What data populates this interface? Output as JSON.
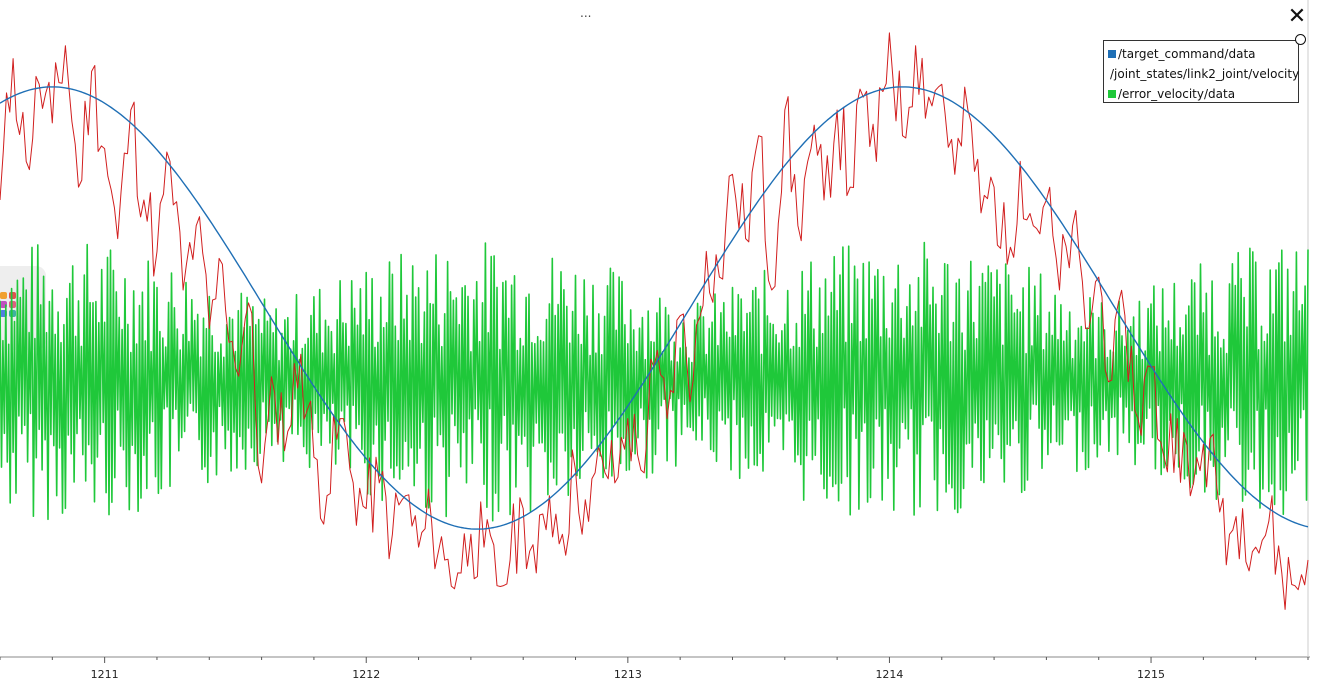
{
  "window": {
    "title_dots": "...",
    "close_symbol": "✕"
  },
  "legend": {
    "items": [
      {
        "label": "/target_command/data",
        "color": "#1f6fb5"
      },
      {
        "label": "/joint_states/link2_joint/velocity",
        "color": "#d11f1f"
      },
      {
        "label": "/error_velocity/data",
        "color": "#1fc83a"
      }
    ]
  },
  "chart_data": {
    "type": "line",
    "xlabel": "",
    "ylabel": "",
    "xlim": [
      1210.6,
      1215.6
    ],
    "ylim": [
      -1.2,
      1.25
    ],
    "x_ticks": [
      "1211",
      "1212",
      "1213",
      "1214",
      "1215"
    ],
    "x_tick_values": [
      1211,
      1212,
      1213,
      1214,
      1215
    ],
    "grid": false,
    "legend_position": "top-right",
    "series": [
      {
        "name": "/target_command/data",
        "color": "#1f6fb5",
        "x": [
          1210.6,
          1210.8,
          1211.0,
          1211.2,
          1211.4,
          1211.6,
          1211.8,
          1212.0,
          1212.2,
          1212.4,
          1212.6,
          1212.8,
          1213.0,
          1213.2,
          1213.4,
          1213.6,
          1213.8,
          1214.0,
          1214.2,
          1214.4,
          1214.6,
          1214.8,
          1215.0,
          1215.2,
          1215.4,
          1215.6
        ],
        "values": [
          0.95,
          1.0,
          0.96,
          0.8,
          0.56,
          0.27,
          -0.03,
          -0.33,
          -0.58,
          -0.72,
          -0.7,
          -0.58,
          -0.35,
          -0.05,
          0.25,
          0.55,
          0.82,
          0.99,
          0.98,
          0.84,
          0.6,
          0.31,
          0.01,
          -0.29,
          -0.54,
          -0.73
        ]
      },
      {
        "name": "/joint_states/link2_joint/velocity",
        "color": "#d11f1f",
        "x": [
          1210.6,
          1210.65,
          1210.7,
          1210.75,
          1210.8,
          1210.85,
          1210.9,
          1210.95,
          1211.0,
          1211.05,
          1211.1,
          1211.15,
          1211.2,
          1211.25,
          1211.3,
          1211.35,
          1211.4,
          1211.45,
          1211.5,
          1211.55,
          1211.6,
          1211.65,
          1211.7,
          1211.75,
          1211.8,
          1211.85,
          1211.9,
          1211.95,
          1212.0,
          1212.05,
          1212.1,
          1212.15,
          1212.2,
          1212.25,
          1212.3,
          1212.35,
          1212.4,
          1212.45,
          1212.5,
          1212.55,
          1212.6,
          1212.65,
          1212.7,
          1212.75,
          1212.8,
          1212.85,
          1212.9,
          1212.95,
          1213.0,
          1213.05,
          1213.1,
          1213.15,
          1213.2,
          1213.25,
          1213.3,
          1213.35,
          1213.4,
          1213.45,
          1213.5,
          1213.55,
          1213.6,
          1213.65,
          1213.7,
          1213.75,
          1213.8,
          1213.85,
          1213.9,
          1213.95,
          1214.0,
          1214.05,
          1214.1,
          1214.15,
          1214.2,
          1214.25,
          1214.3,
          1214.35,
          1214.4,
          1214.45,
          1214.5,
          1214.55,
          1214.6,
          1214.65,
          1214.7,
          1214.75,
          1214.8,
          1214.85,
          1214.9,
          1214.95,
          1215.0,
          1215.05,
          1215.1,
          1215.15,
          1215.2,
          1215.25,
          1215.3,
          1215.35,
          1215.4,
          1215.45,
          1215.5,
          1215.55,
          1215.6
        ],
        "values": [
          0.55,
          1.1,
          0.7,
          1.0,
          0.85,
          1.15,
          0.6,
          1.05,
          0.75,
          0.4,
          0.9,
          0.55,
          0.35,
          0.7,
          0.2,
          0.45,
          0.05,
          0.3,
          -0.1,
          0.15,
          -0.55,
          -0.2,
          -0.35,
          -0.05,
          -0.45,
          -0.6,
          -0.3,
          -0.55,
          -0.65,
          -0.55,
          -0.75,
          -0.6,
          -0.8,
          -0.7,
          -0.85,
          -0.9,
          -0.75,
          -0.8,
          -0.95,
          -0.85,
          -0.65,
          -0.9,
          -0.6,
          -0.75,
          -0.5,
          -0.7,
          -0.45,
          -0.55,
          -0.3,
          -0.5,
          -0.1,
          -0.3,
          0.1,
          -0.15,
          0.35,
          0.25,
          0.65,
          0.4,
          0.8,
          0.2,
          0.9,
          0.45,
          0.75,
          0.55,
          0.9,
          0.6,
          0.95,
          0.7,
          1.2,
          0.8,
          1.15,
          0.95,
          1.0,
          0.65,
          0.9,
          0.5,
          0.6,
          0.3,
          0.7,
          0.45,
          0.55,
          0.2,
          0.45,
          0.05,
          0.25,
          -0.15,
          0.1,
          -0.3,
          -0.1,
          -0.45,
          -0.3,
          -0.6,
          -0.4,
          -0.55,
          -0.75,
          -0.65,
          -0.8,
          -0.7,
          -0.9,
          -0.95,
          -0.85
        ]
      },
      {
        "name": "/error_velocity/data",
        "color": "#1fc83a",
        "x": [
          1210.6,
          1215.6
        ],
        "values": [
          0,
          0
        ],
        "amplitude": 0.55
      }
    ]
  }
}
